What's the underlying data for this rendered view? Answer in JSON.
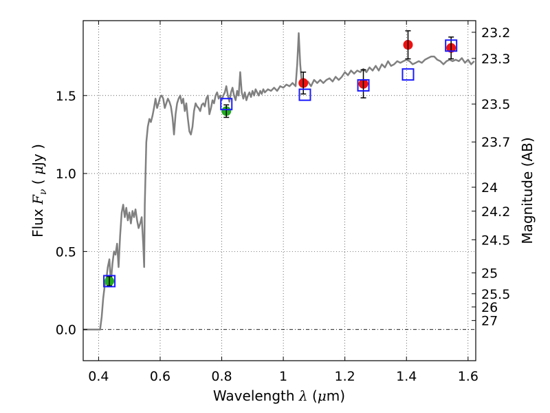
{
  "chart_data": {
    "type": "line",
    "title": "",
    "xlabel": "Wavelength  λ (μm)",
    "xlabel_parts": {
      "prefix": "Wavelength  ",
      "symbol": "λ",
      "units_open": " (",
      "units_mu": "μ",
      "units_rest": "m)"
    },
    "ylabel": "Flux  Fν  ( μJy )",
    "ylabel_parts": {
      "prefix": "Flux  ",
      "symbol": "F",
      "subscript": "ν",
      "units_open": "  ( ",
      "units_mu": "μ",
      "units_rest": "Jy )"
    },
    "y2label": "Magnitude (AB)",
    "xlim": [
      0.35,
      1.625
    ],
    "ylim": [
      -0.2,
      1.98
    ],
    "grid": true,
    "x_ticks": [
      0.4,
      0.6,
      0.8,
      1.0,
      1.2,
      1.4,
      1.6
    ],
    "x_tick_labels": [
      "0.4",
      "0.6",
      "0.8",
      "1",
      "1.2",
      "1.4",
      "1.6"
    ],
    "y_ticks": [
      0.0,
      0.5,
      1.0,
      1.5
    ],
    "y_tick_labels": [
      "0.0",
      "0.5",
      "1.0",
      "1.5"
    ],
    "magnitude_ticks": [
      23.2,
      23.3,
      23.5,
      23.7,
      24,
      24.2,
      24.5,
      25,
      25.5,
      26,
      27
    ],
    "magnitude_tick_labels": [
      "23.2",
      "23.3",
      "23.5",
      "23.7",
      "24",
      "24.2",
      "24.5",
      "25",
      "25.5",
      "26",
      "27"
    ],
    "magnitude_zero_point": 23.9,
    "spectrum": {
      "color": "#808080",
      "points": [
        [
          0.35,
          0.0
        ],
        [
          0.38,
          0.0
        ],
        [
          0.4,
          0.0
        ],
        [
          0.405,
          0.0
        ],
        [
          0.41,
          0.08
        ],
        [
          0.415,
          0.2
        ],
        [
          0.42,
          0.28
        ],
        [
          0.425,
          0.32
        ],
        [
          0.43,
          0.4
        ],
        [
          0.435,
          0.45
        ],
        [
          0.44,
          0.3
        ],
        [
          0.445,
          0.42
        ],
        [
          0.45,
          0.5
        ],
        [
          0.455,
          0.48
        ],
        [
          0.46,
          0.55
        ],
        [
          0.465,
          0.4
        ],
        [
          0.47,
          0.6
        ],
        [
          0.475,
          0.75
        ],
        [
          0.48,
          0.8
        ],
        [
          0.485,
          0.72
        ],
        [
          0.49,
          0.78
        ],
        [
          0.495,
          0.7
        ],
        [
          0.5,
          0.75
        ],
        [
          0.505,
          0.68
        ],
        [
          0.51,
          0.76
        ],
        [
          0.515,
          0.72
        ],
        [
          0.52,
          0.77
        ],
        [
          0.525,
          0.7
        ],
        [
          0.53,
          0.65
        ],
        [
          0.535,
          0.68
        ],
        [
          0.54,
          0.72
        ],
        [
          0.545,
          0.55
        ],
        [
          0.548,
          0.4
        ],
        [
          0.55,
          0.8
        ],
        [
          0.555,
          1.2
        ],
        [
          0.56,
          1.3
        ],
        [
          0.565,
          1.35
        ],
        [
          0.57,
          1.33
        ],
        [
          0.575,
          1.37
        ],
        [
          0.58,
          1.42
        ],
        [
          0.585,
          1.48
        ],
        [
          0.59,
          1.42
        ],
        [
          0.595,
          1.45
        ],
        [
          0.6,
          1.49
        ],
        [
          0.605,
          1.5
        ],
        [
          0.61,
          1.48
        ],
        [
          0.615,
          1.42
        ],
        [
          0.62,
          1.45
        ],
        [
          0.625,
          1.48
        ],
        [
          0.63,
          1.46
        ],
        [
          0.635,
          1.43
        ],
        [
          0.64,
          1.36
        ],
        [
          0.645,
          1.25
        ],
        [
          0.65,
          1.38
        ],
        [
          0.655,
          1.45
        ],
        [
          0.66,
          1.48
        ],
        [
          0.665,
          1.5
        ],
        [
          0.67,
          1.45
        ],
        [
          0.675,
          1.48
        ],
        [
          0.68,
          1.4
        ],
        [
          0.685,
          1.45
        ],
        [
          0.69,
          1.35
        ],
        [
          0.695,
          1.27
        ],
        [
          0.7,
          1.25
        ],
        [
          0.705,
          1.3
        ],
        [
          0.71,
          1.4
        ],
        [
          0.715,
          1.45
        ],
        [
          0.72,
          1.43
        ],
        [
          0.725,
          1.42
        ],
        [
          0.73,
          1.4
        ],
        [
          0.735,
          1.44
        ],
        [
          0.74,
          1.45
        ],
        [
          0.745,
          1.43
        ],
        [
          0.75,
          1.48
        ],
        [
          0.755,
          1.5
        ],
        [
          0.76,
          1.38
        ],
        [
          0.765,
          1.42
        ],
        [
          0.77,
          1.47
        ],
        [
          0.775,
          1.45
        ],
        [
          0.78,
          1.5
        ],
        [
          0.785,
          1.52
        ],
        [
          0.79,
          1.48
        ],
        [
          0.795,
          1.5
        ],
        [
          0.8,
          1.47
        ],
        [
          0.805,
          1.5
        ],
        [
          0.81,
          1.52
        ],
        [
          0.815,
          1.56
        ],
        [
          0.82,
          1.5
        ],
        [
          0.825,
          1.46
        ],
        [
          0.83,
          1.52
        ],
        [
          0.835,
          1.55
        ],
        [
          0.84,
          1.5
        ],
        [
          0.845,
          1.47
        ],
        [
          0.85,
          1.53
        ],
        [
          0.855,
          1.5
        ],
        [
          0.86,
          1.65
        ],
        [
          0.865,
          1.52
        ],
        [
          0.87,
          1.48
        ],
        [
          0.875,
          1.52
        ],
        [
          0.88,
          1.47
        ],
        [
          0.885,
          1.5
        ],
        [
          0.89,
          1.52
        ],
        [
          0.895,
          1.49
        ],
        [
          0.9,
          1.53
        ],
        [
          0.905,
          1.5
        ],
        [
          0.91,
          1.54
        ],
        [
          0.915,
          1.52
        ],
        [
          0.92,
          1.5
        ],
        [
          0.925,
          1.53
        ],
        [
          0.93,
          1.51
        ],
        [
          0.935,
          1.54
        ],
        [
          0.94,
          1.52
        ],
        [
          0.95,
          1.54
        ],
        [
          0.96,
          1.53
        ],
        [
          0.97,
          1.55
        ],
        [
          0.98,
          1.53
        ],
        [
          0.99,
          1.56
        ],
        [
          1.0,
          1.55
        ],
        [
          1.01,
          1.57
        ],
        [
          1.02,
          1.56
        ],
        [
          1.03,
          1.58
        ],
        [
          1.04,
          1.56
        ],
        [
          1.045,
          1.7
        ],
        [
          1.05,
          1.9
        ],
        [
          1.055,
          1.7
        ],
        [
          1.06,
          1.58
        ],
        [
          1.07,
          1.57
        ],
        [
          1.08,
          1.59
        ],
        [
          1.09,
          1.56
        ],
        [
          1.1,
          1.6
        ],
        [
          1.11,
          1.58
        ],
        [
          1.12,
          1.6
        ],
        [
          1.13,
          1.58
        ],
        [
          1.14,
          1.6
        ],
        [
          1.15,
          1.61
        ],
        [
          1.16,
          1.59
        ],
        [
          1.17,
          1.62
        ],
        [
          1.18,
          1.6
        ],
        [
          1.19,
          1.62
        ],
        [
          1.2,
          1.65
        ],
        [
          1.21,
          1.63
        ],
        [
          1.22,
          1.66
        ],
        [
          1.23,
          1.64
        ],
        [
          1.24,
          1.66
        ],
        [
          1.25,
          1.65
        ],
        [
          1.26,
          1.67
        ],
        [
          1.27,
          1.65
        ],
        [
          1.28,
          1.68
        ],
        [
          1.29,
          1.66
        ],
        [
          1.3,
          1.69
        ],
        [
          1.31,
          1.66
        ],
        [
          1.32,
          1.7
        ],
        [
          1.33,
          1.68
        ],
        [
          1.34,
          1.72
        ],
        [
          1.35,
          1.69
        ],
        [
          1.36,
          1.7
        ],
        [
          1.37,
          1.72
        ],
        [
          1.38,
          1.71
        ],
        [
          1.39,
          1.72
        ],
        [
          1.4,
          1.73
        ],
        [
          1.41,
          1.72
        ],
        [
          1.42,
          1.7
        ],
        [
          1.43,
          1.71
        ],
        [
          1.44,
          1.72
        ],
        [
          1.45,
          1.71
        ],
        [
          1.46,
          1.73
        ],
        [
          1.47,
          1.74
        ],
        [
          1.48,
          1.75
        ],
        [
          1.49,
          1.75
        ],
        [
          1.5,
          1.73
        ],
        [
          1.51,
          1.72
        ],
        [
          1.52,
          1.7
        ],
        [
          1.53,
          1.72
        ],
        [
          1.54,
          1.73
        ],
        [
          1.55,
          1.72
        ],
        [
          1.56,
          1.73
        ],
        [
          1.57,
          1.72
        ],
        [
          1.58,
          1.74
        ],
        [
          1.59,
          1.71
        ],
        [
          1.6,
          1.73
        ],
        [
          1.61,
          1.7
        ],
        [
          1.62,
          1.72
        ]
      ]
    },
    "model_photometry": {
      "marker": "open-square",
      "color": "#1a1aff",
      "points": [
        [
          0.435,
          0.31
        ],
        [
          0.815,
          1.445
        ],
        [
          1.07,
          1.505
        ],
        [
          1.26,
          1.565
        ],
        [
          1.405,
          1.635
        ],
        [
          1.545,
          1.82
        ]
      ]
    },
    "observed_green": {
      "marker": "filled-circle",
      "color": "#22aa22",
      "points": [
        [
          0.435,
          0.31,
          0.03
        ],
        [
          0.815,
          1.4,
          0.04
        ]
      ]
    },
    "observed_red": {
      "marker": "filled-circle",
      "color": "#ee1111",
      "points": [
        [
          1.065,
          1.58,
          0.07
        ],
        [
          1.26,
          1.575,
          0.09
        ],
        [
          1.405,
          1.825,
          0.09
        ],
        [
          1.545,
          1.805,
          0.07
        ]
      ]
    },
    "reference_line": {
      "y": 0.0,
      "style": "dash-dot"
    }
  }
}
